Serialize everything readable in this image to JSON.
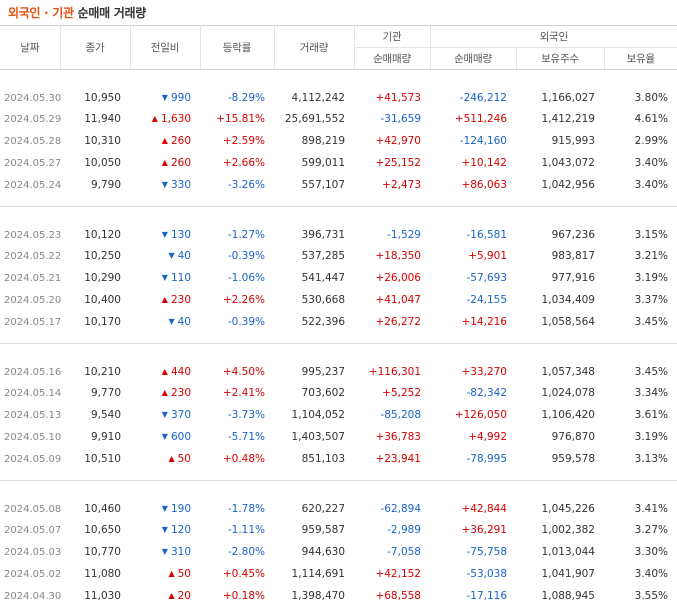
{
  "title": {
    "highlight": "외국인 · 기관",
    "rest": "순매매 거래량"
  },
  "headers": {
    "date": "날짜",
    "close": "종가",
    "change": "전일비",
    "rate": "등락률",
    "volume": "거래량",
    "institution": "기관",
    "foreign": "외국인",
    "inst_net": "순매매량",
    "foreign_net": "순매매량",
    "holding": "보유주수",
    "ratio": "보유율"
  },
  "groups": [
    {
      "rows": [
        {
          "date": "2024.05.30",
          "close": "10,950",
          "dir": "down",
          "change": "990",
          "rate": "-8.29%",
          "volume": "4,112,242",
          "inst": "+41,573",
          "foreign": "-246,212",
          "holding": "1,166,027",
          "ratio": "3.80%"
        },
        {
          "date": "2024.05.29",
          "close": "11,940",
          "dir": "up",
          "change": "1,630",
          "rate": "+15.81%",
          "volume": "25,691,552",
          "inst": "-31,659",
          "foreign": "+511,246",
          "holding": "1,412,219",
          "ratio": "4.61%"
        },
        {
          "date": "2024.05.28",
          "close": "10,310",
          "dir": "up",
          "change": "260",
          "rate": "+2.59%",
          "volume": "898,219",
          "inst": "+42,970",
          "foreign": "-124,160",
          "holding": "915,993",
          "ratio": "2.99%"
        },
        {
          "date": "2024.05.27",
          "close": "10,050",
          "dir": "up",
          "change": "260",
          "rate": "+2.66%",
          "volume": "599,011",
          "inst": "+25,152",
          "foreign": "+10,142",
          "holding": "1,043,072",
          "ratio": "3.40%"
        },
        {
          "date": "2024.05.24",
          "close": "9,790",
          "dir": "down",
          "change": "330",
          "rate": "-3.26%",
          "volume": "557,107",
          "inst": "+2,473",
          "foreign": "+86,063",
          "holding": "1,042,956",
          "ratio": "3.40%"
        }
      ]
    },
    {
      "rows": [
        {
          "date": "2024.05.23",
          "close": "10,120",
          "dir": "down",
          "change": "130",
          "rate": "-1.27%",
          "volume": "396,731",
          "inst": "-1,529",
          "foreign": "-16,581",
          "holding": "967,236",
          "ratio": "3.15%"
        },
        {
          "date": "2024.05.22",
          "close": "10,250",
          "dir": "down",
          "change": "40",
          "rate": "-0.39%",
          "volume": "537,285",
          "inst": "+18,350",
          "foreign": "+5,901",
          "holding": "983,817",
          "ratio": "3.21%"
        },
        {
          "date": "2024.05.21",
          "close": "10,290",
          "dir": "down",
          "change": "110",
          "rate": "-1.06%",
          "volume": "541,447",
          "inst": "+26,006",
          "foreign": "-57,693",
          "holding": "977,916",
          "ratio": "3.19%"
        },
        {
          "date": "2024.05.20",
          "close": "10,400",
          "dir": "up",
          "change": "230",
          "rate": "+2.26%",
          "volume": "530,668",
          "inst": "+41,047",
          "foreign": "-24,155",
          "holding": "1,034,409",
          "ratio": "3.37%"
        },
        {
          "date": "2024.05.17",
          "close": "10,170",
          "dir": "down",
          "change": "40",
          "rate": "-0.39%",
          "volume": "522,396",
          "inst": "+26,272",
          "foreign": "+14,216",
          "holding": "1,058,564",
          "ratio": "3.45%"
        }
      ]
    },
    {
      "rows": [
        {
          "date": "2024.05.16",
          "close": "10,210",
          "dir": "up",
          "change": "440",
          "rate": "+4.50%",
          "volume": "995,237",
          "inst": "+116,301",
          "foreign": "+33,270",
          "holding": "1,057,348",
          "ratio": "3.45%"
        },
        {
          "date": "2024.05.14",
          "close": "9,770",
          "dir": "up",
          "change": "230",
          "rate": "+2.41%",
          "volume": "703,602",
          "inst": "+5,252",
          "foreign": "-82,342",
          "holding": "1,024,078",
          "ratio": "3.34%"
        },
        {
          "date": "2024.05.13",
          "close": "9,540",
          "dir": "down",
          "change": "370",
          "rate": "-3.73%",
          "volume": "1,104,052",
          "inst": "-85,208",
          "foreign": "+126,050",
          "holding": "1,106,420",
          "ratio": "3.61%"
        },
        {
          "date": "2024.05.10",
          "close": "9,910",
          "dir": "down",
          "change": "600",
          "rate": "-5.71%",
          "volume": "1,403,507",
          "inst": "+36,783",
          "foreign": "+4,992",
          "holding": "976,870",
          "ratio": "3.19%"
        },
        {
          "date": "2024.05.09",
          "close": "10,510",
          "dir": "up",
          "change": "50",
          "rate": "+0.48%",
          "volume": "851,103",
          "inst": "+23,941",
          "foreign": "-78,995",
          "holding": "959,578",
          "ratio": "3.13%"
        }
      ]
    },
    {
      "rows": [
        {
          "date": "2024.05.08",
          "close": "10,460",
          "dir": "down",
          "change": "190",
          "rate": "-1.78%",
          "volume": "620,227",
          "inst": "-62,894",
          "foreign": "+42,844",
          "holding": "1,045,226",
          "ratio": "3.41%"
        },
        {
          "date": "2024.05.07",
          "close": "10,650",
          "dir": "down",
          "change": "120",
          "rate": "-1.11%",
          "volume": "959,587",
          "inst": "-2,989",
          "foreign": "+36,291",
          "holding": "1,002,382",
          "ratio": "3.27%"
        },
        {
          "date": "2024.05.03",
          "close": "10,770",
          "dir": "down",
          "change": "310",
          "rate": "-2.80%",
          "volume": "944,630",
          "inst": "-7,058",
          "foreign": "-75,758",
          "holding": "1,013,044",
          "ratio": "3.30%"
        },
        {
          "date": "2024.05.02",
          "close": "11,080",
          "dir": "up",
          "change": "50",
          "rate": "+0.45%",
          "volume": "1,114,691",
          "inst": "+42,152",
          "foreign": "-53,038",
          "holding": "1,041,907",
          "ratio": "3.40%"
        },
        {
          "date": "2024.04.30",
          "close": "11,030",
          "dir": "up",
          "change": "20",
          "rate": "+0.18%",
          "volume": "1,398,470",
          "inst": "+68,558",
          "foreign": "-17,116",
          "holding": "1,088,945",
          "ratio": "3.55%"
        }
      ]
    }
  ],
  "colors": {
    "up": "#d80000",
    "down": "#1a63c8",
    "accent": "#e8510f"
  },
  "icons": {
    "up": "triangle-up-icon",
    "down": "triangle-down-icon"
  }
}
